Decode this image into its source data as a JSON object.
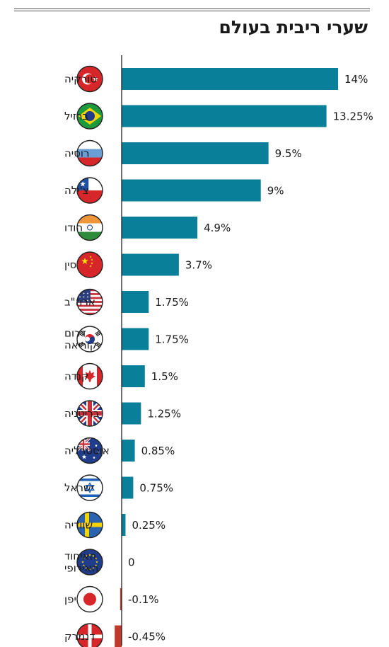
{
  "chart_data": {
    "type": "bar",
    "orientation": "horizontal",
    "title": "שערי ריבית בעולם",
    "colors": {
      "positive": "#0a7f99",
      "negative": "#c0392b"
    },
    "categories": [
      {
        "label": [
          "טורקיה"
        ],
        "flag": "turkey-flag-icon"
      },
      {
        "label": [
          "ברזיל"
        ],
        "flag": "brazil-flag-icon"
      },
      {
        "label": [
          "רוסיה"
        ],
        "flag": "russia-flag-icon"
      },
      {
        "label": [
          "צ'ילה"
        ],
        "flag": "chile-flag-icon"
      },
      {
        "label": [
          "הודו"
        ],
        "flag": "india-flag-icon"
      },
      {
        "label": [
          "סין"
        ],
        "flag": "china-flag-icon"
      },
      {
        "label": [
          "ארה\"ב"
        ],
        "flag": "usa-flag-icon"
      },
      {
        "label": [
          "דרום",
          "קוריאה"
        ],
        "flag": "south-korea-flag-icon"
      },
      {
        "label": [
          "קנדה"
        ],
        "flag": "canada-flag-icon"
      },
      {
        "label": [
          "בריטניה"
        ],
        "flag": "uk-flag-icon"
      },
      {
        "label": [
          "אוסטרליה"
        ],
        "flag": "australia-flag-icon"
      },
      {
        "label": [
          "ישראל"
        ],
        "flag": "israel-flag-icon"
      },
      {
        "label": [
          "שוודיה"
        ],
        "flag": "sweden-flag-icon"
      },
      {
        "label": [
          "האיחוד",
          "האירופי"
        ],
        "flag": "eu-flag-icon"
      },
      {
        "label": [
          "יפן"
        ],
        "flag": "japan-flag-icon"
      },
      {
        "label": [
          "דנמרק"
        ],
        "flag": "denmark-flag-icon"
      }
    ],
    "values": [
      14,
      13.25,
      9.5,
      9,
      4.9,
      3.7,
      1.75,
      1.75,
      1.5,
      1.25,
      0.85,
      0.75,
      0.25,
      0,
      -0.1,
      -0.45
    ],
    "value_labels": [
      "14%",
      "13.25%",
      "9.5%",
      "9%",
      "4.9%",
      "3.7%",
      "1.75%",
      "1.75%",
      "1.5%",
      "1.25%",
      "0.85%",
      "0.75%",
      "0.25%",
      "0",
      "-0.1%",
      "-0.45%"
    ]
  }
}
